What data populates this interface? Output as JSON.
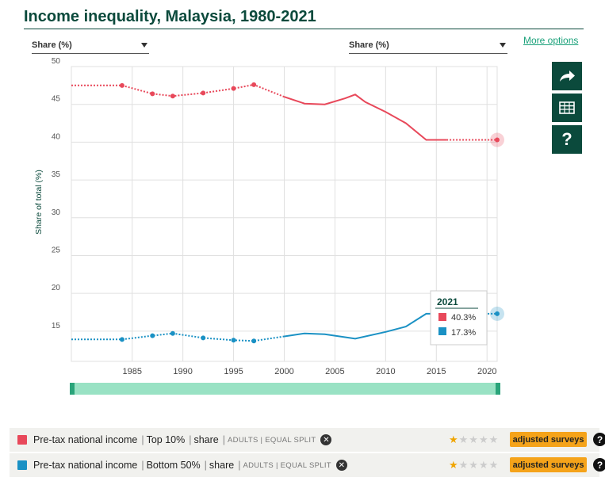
{
  "header": {
    "title": "Income inequality, Malaysia, 1980-2021",
    "dropdown_left": "Share (%)",
    "dropdown_right": "Share (%)",
    "more_options": "More options"
  },
  "sidebar": {
    "share_icon": "share-arrow-icon",
    "table_icon": "table-icon",
    "help_label": "?"
  },
  "tooltip": {
    "year": "2021",
    "top10": "40.3%",
    "bottom50": "17.3%"
  },
  "legend": [
    {
      "color": "#e8485a",
      "indicator": "Pre-tax national income",
      "group": "Top 10%",
      "measure": "share",
      "details": "ADULTS | EQUAL SPLIT",
      "stars": 1,
      "badge": "adjusted surveys"
    },
    {
      "color": "#1a91c4",
      "indicator": "Pre-tax national income",
      "group": "Bottom 50%",
      "measure": "share",
      "details": "ADULTS | EQUAL SPLIT",
      "stars": 1,
      "badge": "adjusted surveys"
    }
  ],
  "chart_data": {
    "type": "line",
    "ylabel": "Share of total (%)",
    "xlim": [
      1979,
      2021
    ],
    "ylim": [
      11,
      50
    ],
    "yticks": [
      15,
      20,
      25,
      30,
      35,
      40,
      45,
      50
    ],
    "xticks": [
      1985,
      1990,
      1995,
      2000,
      2005,
      2010,
      2015,
      2020
    ],
    "grid": true,
    "series": [
      {
        "name": "Pre-tax national income | Top 10% | share",
        "color": "#e8485a",
        "points": [
          [
            1979,
            47.5
          ],
          [
            1984,
            47.5
          ],
          [
            1987,
            46.4
          ],
          [
            1989,
            46.1
          ],
          [
            1992,
            46.5
          ],
          [
            1995,
            47.1
          ],
          [
            1997,
            47.6
          ],
          [
            2000,
            46.0
          ],
          [
            2002,
            45.1
          ],
          [
            2004,
            45.0
          ],
          [
            2006,
            45.8
          ],
          [
            2007,
            46.3
          ],
          [
            2008,
            45.3
          ],
          [
            2010,
            44.0
          ],
          [
            2012,
            42.5
          ],
          [
            2014,
            40.3
          ],
          [
            2016,
            40.3
          ],
          [
            2021,
            40.3
          ]
        ],
        "markers": [
          1984,
          1987,
          1989,
          1992,
          1995,
          1997,
          2021
        ],
        "solid_from": 2000,
        "solid_to": 2016
      },
      {
        "name": "Pre-tax national income | Bottom 50% | share",
        "color": "#1a91c4",
        "points": [
          [
            1979,
            13.9
          ],
          [
            1984,
            13.9
          ],
          [
            1987,
            14.4
          ],
          [
            1989,
            14.7
          ],
          [
            1992,
            14.1
          ],
          [
            1995,
            13.8
          ],
          [
            1997,
            13.7
          ],
          [
            2000,
            14.3
          ],
          [
            2002,
            14.7
          ],
          [
            2004,
            14.6
          ],
          [
            2007,
            14.0
          ],
          [
            2010,
            14.9
          ],
          [
            2012,
            15.6
          ],
          [
            2014,
            17.3
          ],
          [
            2016,
            17.3
          ],
          [
            2021,
            17.3
          ]
        ],
        "markers": [
          1984,
          1987,
          1989,
          1992,
          1995,
          1997,
          2021
        ],
        "solid_from": 2000,
        "solid_to": 2016
      }
    ]
  }
}
